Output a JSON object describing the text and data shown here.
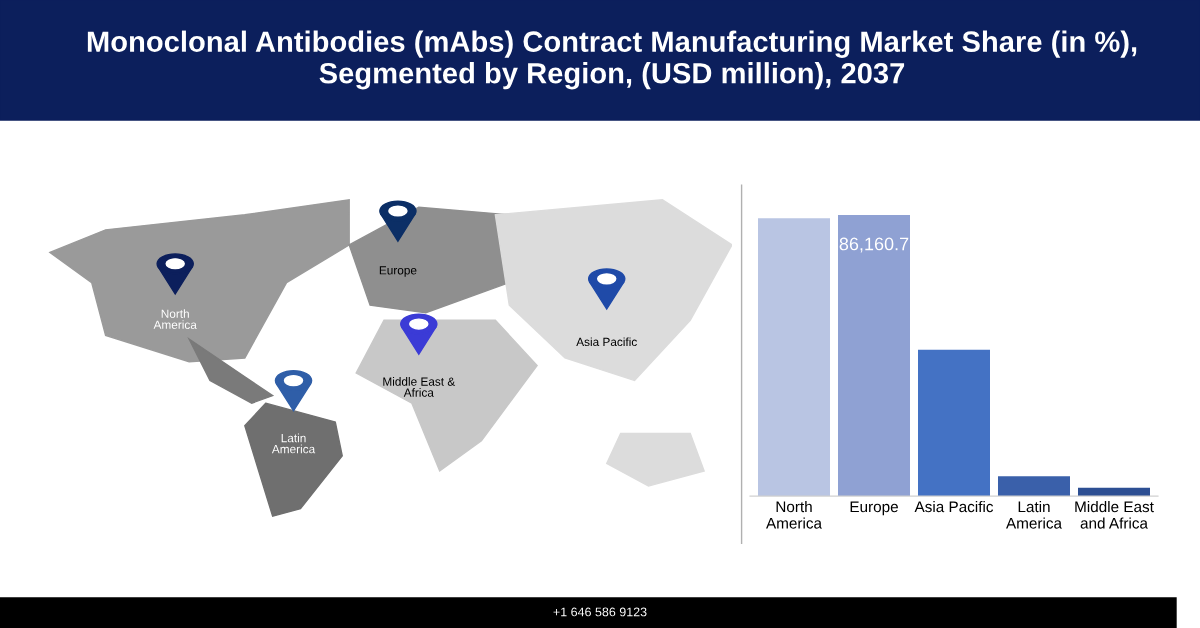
{
  "chart_data": {
    "type": "bar",
    "title": "Monoclonal Antibodies (mAbs) Contract Manufacturing Market Share (in %), Segmented by Region, (USD million), 2037",
    "categories": [
      "North\nAmerica",
      "Europe",
      "Asia Pacific",
      "Latin\nAmerica",
      "Middle East\nand Africa"
    ],
    "values": [
      85200,
      86160.7,
      44900,
      6100,
      2600
    ],
    "colors": [
      "#b9c5e3",
      "#8fa1d3",
      "#4472c4",
      "#3a60aa",
      "#2d4f93"
    ],
    "value_labels": [
      null,
      "86,160.7",
      null,
      null,
      null
    ],
    "annotations": [
      "North\nAmerica",
      "Europe",
      "Asia Pacific",
      "Middle East &\nAfrica",
      "Latin\nAmerica",
      "+1 646 586 9123"
    ]
  }
}
